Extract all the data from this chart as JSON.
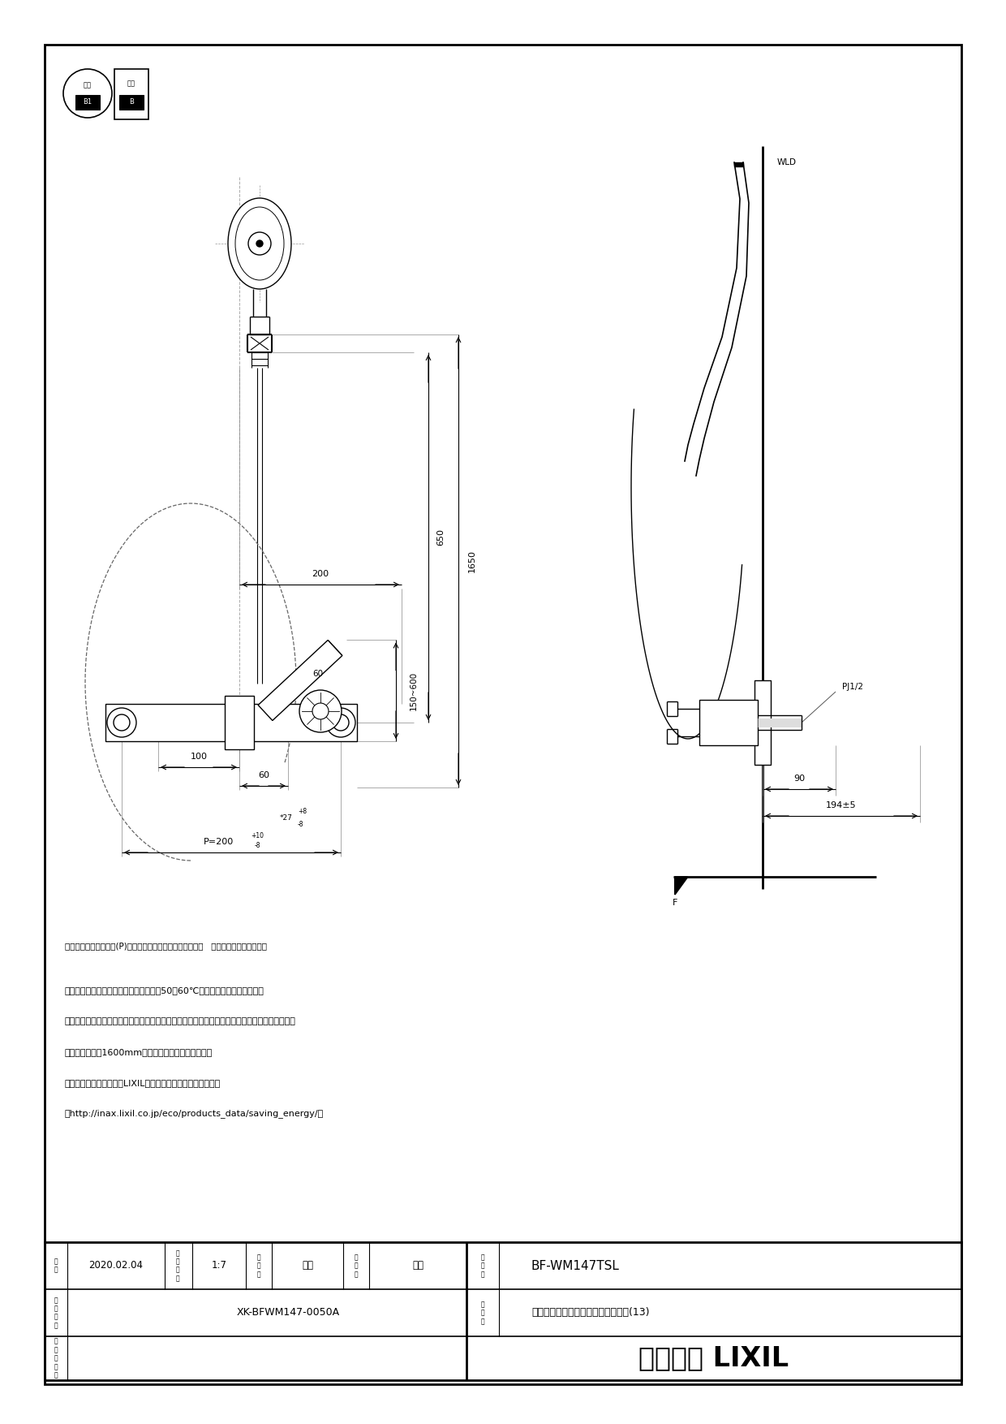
{
  "page_width": 12.4,
  "page_height": 17.54,
  "bg_color": "#ffffff",
  "lc": "#000000",
  "title_company": "株式会社 LIXIL",
  "product_number": "BF-WM147TSL",
  "product_name": "サーモスタット付シャワーバス水栓(13)",
  "drawing_number": "XK-BFWM147-0050A",
  "date": "2020.02.04",
  "scale": "1:7",
  "designer": "金山",
  "checker": "磯崎",
  "notes": [
    "・適温の湯を出すためには給湯器の温度50～60℃の設定をおすすめします。",
    "・シャワーヘッドは乱暴に扱わないで下さい。メッキがはがれて、ケガをする恐れがあります。",
    "・〈ホース長さ1600mm、温度調節ハンドル調整要〉",
    "・前湯記号については、LIXILホームページを参照ください。",
    "（http://inax.lixil.co.jp/eco/products_data/saving_energy/）"
  ],
  "note_footer": "＊印寸法は配管ピッチ(P)が最大・最小の場合を（標準寸法   最大）で示しています。"
}
